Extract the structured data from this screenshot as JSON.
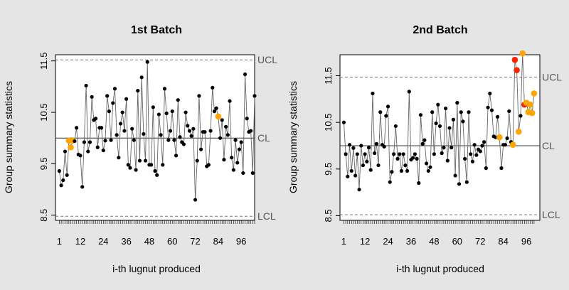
{
  "colors": {
    "background": "#e5e5e5",
    "panel": "#ffffff",
    "point": "#000000",
    "warning": "#ffa500",
    "violation": "#ff2400",
    "centerline": "#333333",
    "limitline": "#777777",
    "limit_label": "#555555"
  },
  "chart_data": [
    {
      "type": "line",
      "title": "1st Batch",
      "xlabel": "i-th lugnut produced",
      "ylabel": "Group summary statistics",
      "xlim": [
        -1,
        103
      ],
      "ylim": [
        8.4,
        11.62
      ],
      "x_ticks": [
        1,
        12,
        24,
        36,
        48,
        60,
        72,
        84,
        96
      ],
      "y_ticks": [
        8.5,
        9.5,
        10.5,
        11.5
      ],
      "y_tick_labels": [
        "8.5",
        "9.5",
        "10.5",
        "11.5"
      ],
      "minor_ticks_every": 1,
      "grid": false,
      "limits": {
        "UCL": 11.52,
        "CL": 10.0,
        "LCL": 8.48
      },
      "limit_labels": {
        "ucl": "UCL",
        "cl": "CL",
        "lcl": "LCL"
      },
      "warning_points": [
        6,
        7,
        8,
        84
      ],
      "violation_points": [],
      "series": [
        {
          "x_start": 1,
          "values": [
            9.36,
            9.08,
            9.18,
            9.74,
            9.28,
            9.95,
            9.82,
            9.95,
            9.94,
            10.2,
            9.68,
            9.66,
            9.05,
            9.92,
            11.02,
            9.74,
            9.92,
            10.8,
            10.35,
            10.38,
            9.82,
            10.2,
            10.2,
            9.76,
            9.95,
            10.82,
            10.52,
            9.96,
            10.68,
            10.96,
            10.06,
            9.62,
            10.28,
            10.5,
            10.14,
            10.76,
            9.48,
            9.42,
            10.18,
            9.96,
            9.38,
            10.92,
            9.56,
            11.18,
            10.08,
            9.56,
            11.48,
            9.48,
            9.48,
            10.6,
            9.36,
            9.28,
            10.46,
            10.06,
            9.48,
            10.96,
            10.48,
            9.96,
            10.14,
            10.52,
            9.96,
            9.66,
            10.74,
            10.02,
            9.92,
            9.88,
            10.5,
            10.24,
            10.14,
            10.04,
            10.18,
            8.8,
            9.56,
            10.82,
            9.78,
            10.12,
            10.12,
            9.45,
            9.48,
            10.14,
            10.98,
            10.52,
            10.58,
            10.42,
            10.0,
            10.35,
            9.58,
            10.22,
            10.06,
            10.72,
            9.62,
            9.38,
            9.96,
            9.52,
            9.78,
            9.92,
            9.32,
            11.24,
            10.38,
            10.12,
            10.14,
            9.32,
            10.82
          ]
        }
      ]
    },
    {
      "type": "line",
      "title": "2nd Batch",
      "xlabel": "i-th lugnut produced",
      "ylabel": "Group summary statistics",
      "xlim": [
        -1,
        103
      ],
      "ylim": [
        8.4,
        11.95
      ],
      "x_ticks": [
        1,
        12,
        24,
        36,
        48,
        60,
        72,
        84,
        96
      ],
      "y_ticks": [
        8.5,
        9.5,
        10.5,
        11.5
      ],
      "y_tick_labels": [
        "8.5",
        "9.5",
        "10.5",
        "11.5"
      ],
      "minor_ticks_every": 1,
      "grid": false,
      "limits": {
        "UCL": 11.47,
        "CL": 10.0,
        "LCL": 8.52
      },
      "limit_labels": {
        "ucl": "UCL",
        "cl": "CL",
        "lcl": "LCL"
      },
      "warning_points": [
        82,
        89,
        92,
        94,
        95,
        96,
        97,
        98,
        99,
        100
      ],
      "violation_points": [
        90,
        91,
        95
      ],
      "series": [
        {
          "x_start": 1,
          "values": [
            10.5,
            9.82,
            9.34,
            10.02,
            9.46,
            9.95,
            9.36,
            9.82,
            9.06,
            10.0,
            9.58,
            9.82,
            9.66,
            9.96,
            9.48,
            11.12,
            9.84,
            10.04,
            9.58,
            10.72,
            10.02,
            9.98,
            10.64,
            10.84,
            9.22,
            9.44,
            9.82,
            10.42,
            9.72,
            9.82,
            9.46,
            9.82,
            9.58,
            9.46,
            11.16,
            9.7,
            9.74,
            9.82,
            9.72,
            9.2,
            10.66,
            10.04,
            10.12,
            9.62,
            9.46,
            9.54,
            10.72,
            9.82,
            10.48,
            10.88,
            10.42,
            9.84,
            9.96,
            10.8,
            9.68,
            10.38,
            9.96,
            10.56,
            9.36,
            10.92,
            9.18,
            10.72,
            10.52,
            9.72,
            9.22,
            10.72,
            9.82,
            9.66,
            10.02,
            9.8,
            9.92,
            9.88,
            10.0,
            10.08,
            9.52,
            10.82,
            11.12,
            10.76,
            10.2,
            10.18,
            10.62,
            10.18,
            9.52,
            10.02,
            10.02,
            10.16,
            10.74,
            10.08,
            10.02,
            11.84,
            11.62,
            10.3,
            10.64,
            11.98,
            10.88,
            10.92,
            10.72,
            10.88,
            10.7,
            11.12
          ]
        }
      ]
    }
  ]
}
